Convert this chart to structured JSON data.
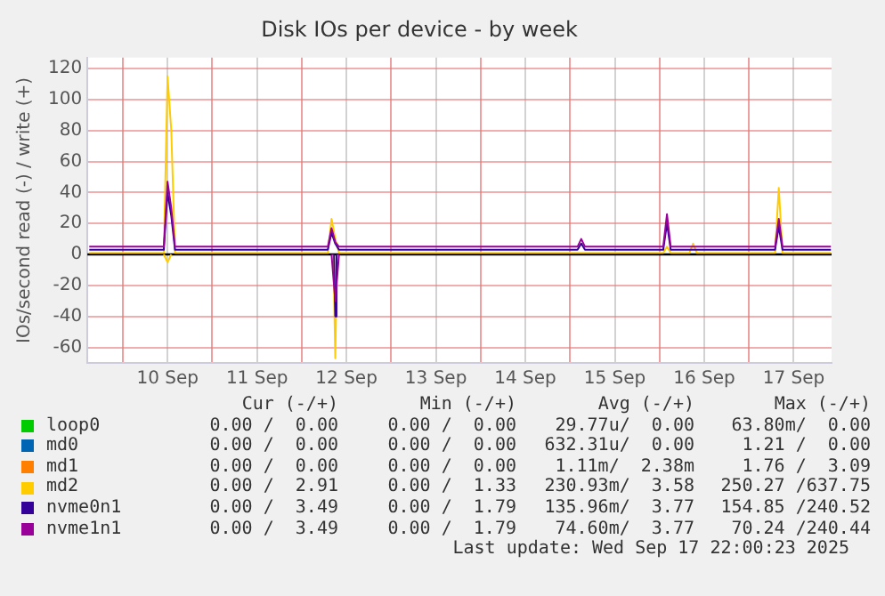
{
  "chart_data": {
    "type": "line",
    "title": "Disk IOs per device - by week",
    "ylabel": "IOs/second read (-) / write (+)",
    "x": [
      "2025-09-09T15:00",
      "2025-09-10T00:00",
      "2025-09-10T08:00",
      "2025-09-10T11:00",
      "2025-09-10T12:00",
      "2025-09-10T13:00",
      "2025-09-10T14:00",
      "2025-09-10T16:00",
      "2025-09-11T00:00",
      "2025-09-11T12:00",
      "2025-09-12T00:00",
      "2025-09-12T07:00",
      "2025-09-12T08:00",
      "2025-09-12T09:00",
      "2025-09-12T10:00",
      "2025-09-12T12:00",
      "2025-09-13T00:00",
      "2025-09-13T12:00",
      "2025-09-14T00:00",
      "2025-09-14T12:00",
      "2025-09-15T00:00",
      "2025-09-15T02:00",
      "2025-09-15T03:00",
      "2025-09-15T04:00",
      "2025-09-15T12:00",
      "2025-09-16T00:00",
      "2025-09-16T01:00",
      "2025-09-16T02:00",
      "2025-09-16T03:00",
      "2025-09-16T08:00",
      "2025-09-16T09:00",
      "2025-09-16T10:00",
      "2025-09-16T20:00",
      "2025-09-17T00:00",
      "2025-09-17T07:00",
      "2025-09-17T08:00",
      "2025-09-17T09:00",
      "2025-09-17T16:00",
      "2025-09-17T22:00"
    ],
    "series": [
      {
        "name": "loop0",
        "color": "#00cc00",
        "values": [
          null,
          null,
          null,
          null,
          null,
          null,
          null,
          null,
          null,
          null,
          null,
          null,
          null,
          null,
          null,
          null,
          null,
          null,
          null,
          null,
          null,
          null,
          null,
          null,
          null,
          null,
          null,
          null,
          null,
          null,
          null,
          null,
          null,
          null,
          null,
          null,
          null,
          null,
          null
        ]
      },
      {
        "name": "md0",
        "color": "#0066b3",
        "values": [
          null,
          null,
          null,
          null,
          null,
          null,
          null,
          null,
          null,
          null,
          null,
          null,
          null,
          null,
          null,
          null,
          null,
          null,
          null,
          null,
          null,
          null,
          null,
          null,
          null,
          null,
          null,
          null,
          null,
          null,
          null,
          null,
          null,
          null,
          null,
          null,
          null,
          null,
          null
        ]
      },
      {
        "name": "md1",
        "color": "#ff8000",
        "values": [
          null,
          null,
          null,
          null,
          null,
          null,
          null,
          null,
          null,
          null,
          null,
          null,
          null,
          null,
          null,
          null,
          null,
          null,
          null,
          null,
          null,
          null,
          null,
          null,
          null,
          null,
          null,
          null,
          null,
          null,
          null,
          null,
          null,
          null,
          null,
          null,
          null,
          null,
          null
        ]
      },
      {
        "name": "md2",
        "color": "#ffcc00",
        "values": [
          1,
          1,
          1,
          1,
          115,
          80,
          1,
          1,
          1,
          1,
          1,
          1,
          23,
          10,
          1,
          1,
          1,
          1,
          1,
          1,
          1,
          1,
          1,
          1,
          1,
          1,
          1,
          5,
          1,
          1,
          7,
          1,
          1,
          1,
          1,
          43,
          1,
          1,
          1
        ]
      },
      {
        "color": "#ffcc00",
        "x": [
          "2025-09-10T11:00",
          "2025-09-10T12:00",
          "2025-09-10T13:00",
          "2025-09-11T00:00",
          "2025-09-12T08:30",
          "2025-09-12T09:00",
          "2025-09-12T09:30"
        ],
        "values": [
          0,
          -5,
          0,
          null,
          0,
          -67,
          0
        ]
      },
      {
        "name": "nvme0n1",
        "color": "#330099",
        "values": [
          3,
          3,
          3,
          3,
          40,
          25,
          3,
          3,
          3,
          3,
          3,
          3,
          14,
          7,
          3,
          3,
          3,
          3,
          3,
          3,
          3,
          3,
          7,
          3,
          3,
          3,
          3,
          20,
          3,
          3,
          3,
          3,
          3,
          3,
          3,
          18,
          3,
          3,
          3
        ]
      },
      {
        "color": "#330099",
        "x": [
          "2025-09-12T08:40",
          "2025-09-12T09:00",
          "2025-09-12T09:20"
        ],
        "values": [
          0,
          -40,
          0
        ]
      },
      {
        "name": "nvme1n1",
        "color": "#990099",
        "values": [
          5,
          5,
          5,
          5,
          47,
          30,
          5,
          5,
          5,
          5,
          5,
          5,
          17,
          8,
          5,
          5,
          5,
          5,
          5,
          5,
          5,
          5,
          10,
          5,
          5,
          5,
          5,
          26,
          5,
          5,
          5,
          5,
          5,
          5,
          5,
          23,
          5,
          5,
          5
        ]
      },
      {
        "color": "#990099",
        "x": [
          "2025-09-12T08:00",
          "2025-09-12T09:00",
          "2025-09-12T10:00"
        ],
        "values": [
          0,
          -30,
          0
        ]
      }
    ],
    "xlim": [
      "2025-09-09T14:30",
      "2025-09-17T22:10"
    ],
    "xticks": [
      {
        "value": "2025-09-10T00:00",
        "label": null
      },
      {
        "value": "2025-09-10T12:00",
        "label": "10 Sep"
      },
      {
        "value": "2025-09-11T00:00",
        "label": null
      },
      {
        "value": "2025-09-11T12:00",
        "label": "11 Sep"
      },
      {
        "value": "2025-09-12T00:00",
        "label": null
      },
      {
        "value": "2025-09-12T12:00",
        "label": "12 Sep"
      },
      {
        "value": "2025-09-13T00:00",
        "label": null
      },
      {
        "value": "2025-09-13T12:00",
        "label": "13 Sep"
      },
      {
        "value": "2025-09-14T00:00",
        "label": null
      },
      {
        "value": "2025-09-14T12:00",
        "label": "14 Sep"
      },
      {
        "value": "2025-09-15T00:00",
        "label": null
      },
      {
        "value": "2025-09-15T12:00",
        "label": "15 Sep"
      },
      {
        "value": "2025-09-16T00:00",
        "label": null
      },
      {
        "value": "2025-09-16T12:00",
        "label": "16 Sep"
      },
      {
        "value": "2025-09-17T00:00",
        "label": null
      },
      {
        "value": "2025-09-17T12:00",
        "label": "17 Sep"
      }
    ],
    "ylim": [
      -70,
      127
    ],
    "yticks": [
      -60,
      -40,
      -20,
      0,
      20,
      40,
      60,
      80,
      100,
      120
    ],
    "grid": true,
    "legend": "bottom",
    "ref_lines": [
      {
        "axis": "y",
        "value": 0,
        "color": "#000000"
      }
    ],
    "annotations": [
      "Cur (-/+)",
      "Min (-/+)",
      "Avg (-/+)",
      "Max (-/+)",
      "0.00 /  0.00",
      "0.00 /  0.00",
      "29.77u/  0.00",
      "63.80m/  0.00",
      "0.00 /  0.00",
      "0.00 /  0.00",
      "632.31u/  0.00",
      "1.21 /  0.00",
      "0.00 /  0.00",
      "0.00 /  0.00",
      "1.11m/  2.38m",
      "1.76 /  3.09",
      "0.00 /  2.91",
      "0.00 /  1.33",
      "230.93m/  3.58",
      "250.27 /637.75",
      "0.00 /  3.49",
      "0.00 /  1.79",
      "135.96m/  3.77",
      "154.85 /240.52",
      "0.00 /  3.49",
      "0.00 /  1.79",
      "74.60m/  3.77",
      "70.24 /240.44",
      "Last update: Wed Sep 17 22:00:23 2025"
    ]
  }
}
